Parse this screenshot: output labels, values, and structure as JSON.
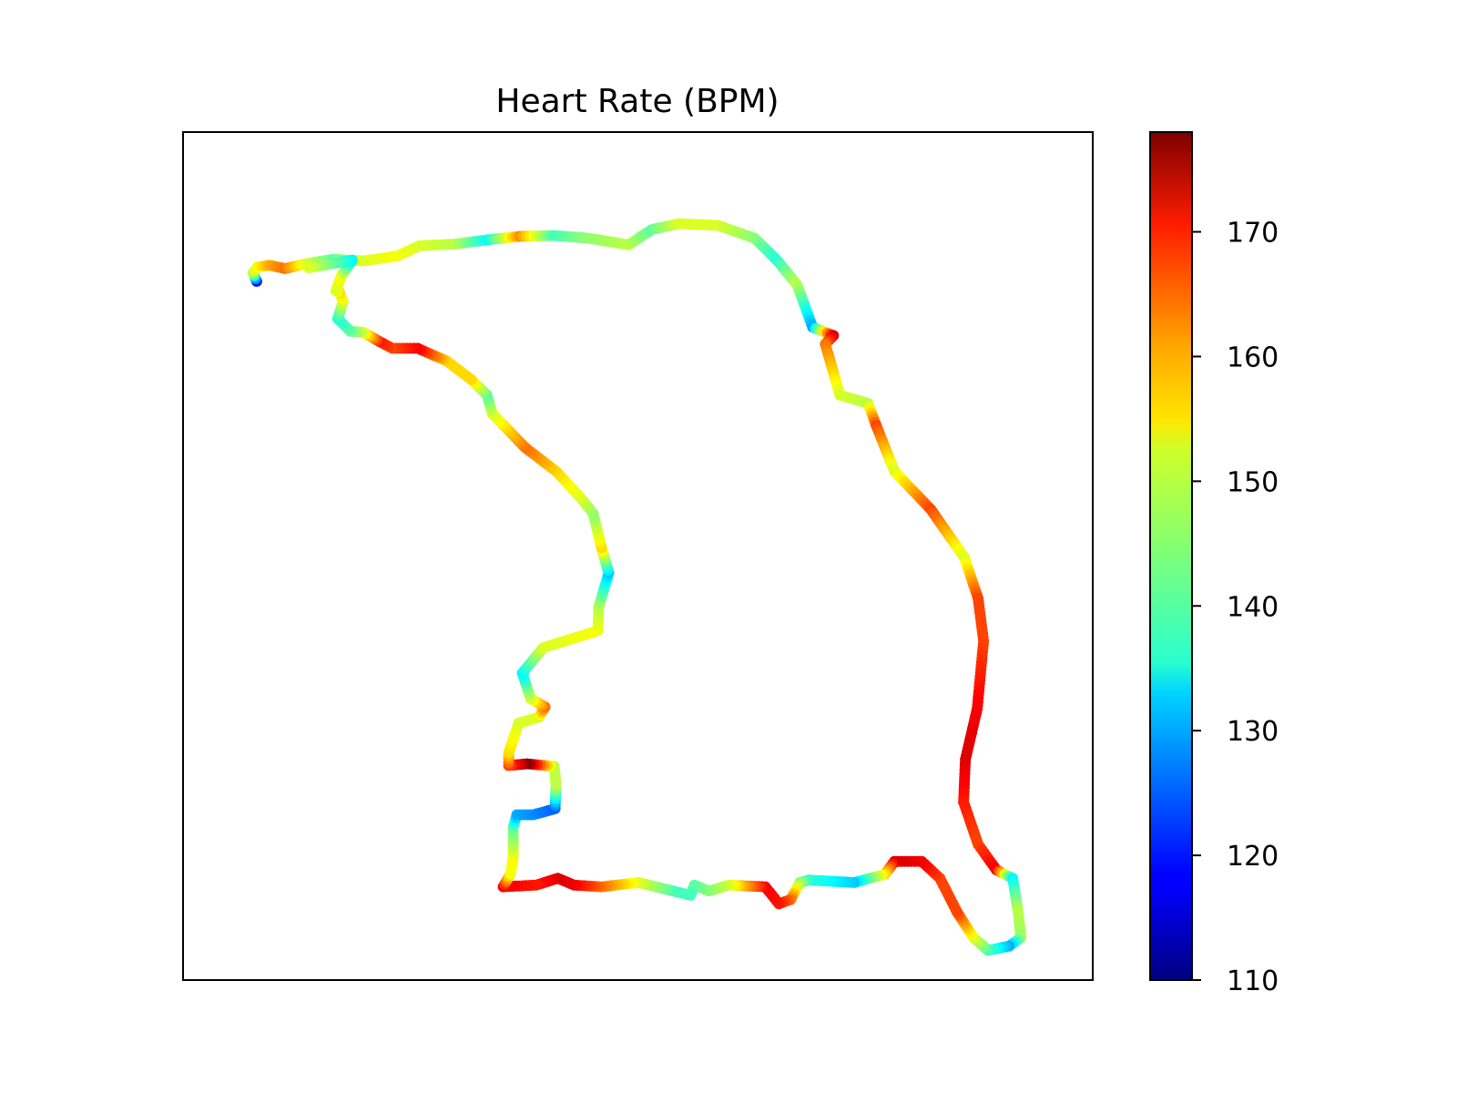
{
  "chart_data": {
    "type": "scatter",
    "title": "Heart Rate (BPM)",
    "xlabel": "",
    "ylabel": "",
    "axes_ticks_visible": false,
    "grid": false,
    "colormap": "jet",
    "colorbar": {
      "vmin": 110,
      "vmax": 178,
      "ticks": [
        110,
        120,
        130,
        140,
        150,
        160,
        170
      ],
      "tick_labels": [
        "110",
        "120",
        "130",
        "140",
        "150",
        "160",
        "170"
      ],
      "placement": "right"
    },
    "track": [
      [
        0.081,
        0.824,
        120
      ],
      [
        0.077,
        0.834,
        148
      ],
      [
        0.082,
        0.841,
        152
      ],
      [
        0.095,
        0.843,
        158
      ],
      [
        0.112,
        0.839,
        162
      ],
      [
        0.136,
        0.845,
        150
      ],
      [
        0.165,
        0.85,
        142
      ],
      [
        0.198,
        0.848,
        150
      ],
      [
        0.236,
        0.854,
        152
      ],
      [
        0.26,
        0.866,
        150
      ],
      [
        0.3,
        0.868,
        148
      ],
      [
        0.335,
        0.873,
        136
      ],
      [
        0.37,
        0.877,
        160
      ],
      [
        0.408,
        0.878,
        140
      ],
      [
        0.445,
        0.875,
        145
      ],
      [
        0.49,
        0.867,
        148
      ],
      [
        0.515,
        0.885,
        142
      ],
      [
        0.545,
        0.892,
        150
      ],
      [
        0.588,
        0.89,
        150
      ],
      [
        0.628,
        0.875,
        145
      ],
      [
        0.652,
        0.85,
        138
      ],
      [
        0.675,
        0.82,
        148
      ],
      [
        0.692,
        0.77,
        130
      ],
      [
        0.715,
        0.76,
        172
      ],
      [
        0.706,
        0.75,
        162
      ],
      [
        0.722,
        0.69,
        150
      ],
      [
        0.753,
        0.68,
        148
      ],
      [
        0.762,
        0.654,
        165
      ],
      [
        0.782,
        0.6,
        150
      ],
      [
        0.822,
        0.555,
        165
      ],
      [
        0.859,
        0.498,
        150
      ],
      [
        0.874,
        0.45,
        165
      ],
      [
        0.88,
        0.4,
        165
      ],
      [
        0.873,
        0.32,
        170
      ],
      [
        0.86,
        0.26,
        172
      ],
      [
        0.858,
        0.21,
        168
      ],
      [
        0.874,
        0.16,
        165
      ],
      [
        0.894,
        0.13,
        170
      ],
      [
        0.912,
        0.12,
        135
      ],
      [
        0.918,
        0.08,
        148
      ],
      [
        0.921,
        0.05,
        146
      ],
      [
        0.908,
        0.04,
        130
      ],
      [
        0.885,
        0.035,
        140
      ],
      [
        0.869,
        0.05,
        150
      ],
      [
        0.851,
        0.08,
        165
      ],
      [
        0.832,
        0.12,
        165
      ],
      [
        0.812,
        0.14,
        170
      ],
      [
        0.782,
        0.14,
        172
      ],
      [
        0.772,
        0.125,
        155
      ],
      [
        0.738,
        0.115,
        132
      ],
      [
        0.688,
        0.118,
        138
      ],
      [
        0.678,
        0.115,
        145
      ],
      [
        0.668,
        0.095,
        162
      ],
      [
        0.655,
        0.09,
        168
      ],
      [
        0.64,
        0.11,
        170
      ],
      [
        0.6,
        0.112,
        150
      ],
      [
        0.578,
        0.105,
        145
      ],
      [
        0.562,
        0.112,
        142
      ],
      [
        0.558,
        0.1,
        140
      ],
      [
        0.539,
        0.105,
        140
      ],
      [
        0.501,
        0.115,
        150
      ],
      [
        0.46,
        0.11,
        162
      ],
      [
        0.43,
        0.112,
        170
      ],
      [
        0.412,
        0.12,
        172
      ],
      [
        0.388,
        0.112,
        168
      ],
      [
        0.352,
        0.11,
        170
      ],
      [
        0.36,
        0.125,
        152
      ],
      [
        0.363,
        0.145,
        152
      ],
      [
        0.363,
        0.18,
        142
      ],
      [
        0.367,
        0.195,
        130
      ],
      [
        0.385,
        0.195,
        128
      ],
      [
        0.409,
        0.202,
        125
      ],
      [
        0.41,
        0.23,
        148
      ],
      [
        0.408,
        0.252,
        148
      ],
      [
        0.378,
        0.255,
        178
      ],
      [
        0.358,
        0.253,
        165
      ],
      [
        0.358,
        0.268,
        155
      ],
      [
        0.369,
        0.303,
        150
      ],
      [
        0.391,
        0.31,
        150
      ],
      [
        0.398,
        0.322,
        162
      ],
      [
        0.382,
        0.332,
        150
      ],
      [
        0.373,
        0.362,
        135
      ],
      [
        0.396,
        0.392,
        150
      ],
      [
        0.456,
        0.412,
        152
      ],
      [
        0.457,
        0.44,
        148
      ],
      [
        0.468,
        0.48,
        132
      ],
      [
        0.46,
        0.51,
        155
      ],
      [
        0.451,
        0.55,
        145
      ],
      [
        0.436,
        0.57,
        150
      ],
      [
        0.41,
        0.6,
        155
      ],
      [
        0.376,
        0.628,
        162
      ],
      [
        0.34,
        0.668,
        150
      ],
      [
        0.334,
        0.69,
        142
      ],
      [
        0.317,
        0.708,
        155
      ],
      [
        0.29,
        0.73,
        155
      ],
      [
        0.258,
        0.745,
        170
      ],
      [
        0.23,
        0.745,
        165
      ],
      [
        0.216,
        0.753,
        168
      ],
      [
        0.198,
        0.764,
        150
      ],
      [
        0.184,
        0.765,
        142
      ],
      [
        0.17,
        0.78,
        138
      ],
      [
        0.176,
        0.8,
        150
      ],
      [
        0.172,
        0.811,
        155
      ],
      [
        0.168,
        0.813,
        150
      ],
      [
        0.174,
        0.83,
        152
      ],
      [
        0.186,
        0.849,
        135
      ],
      [
        0.138,
        0.84,
        150
      ]
    ]
  }
}
